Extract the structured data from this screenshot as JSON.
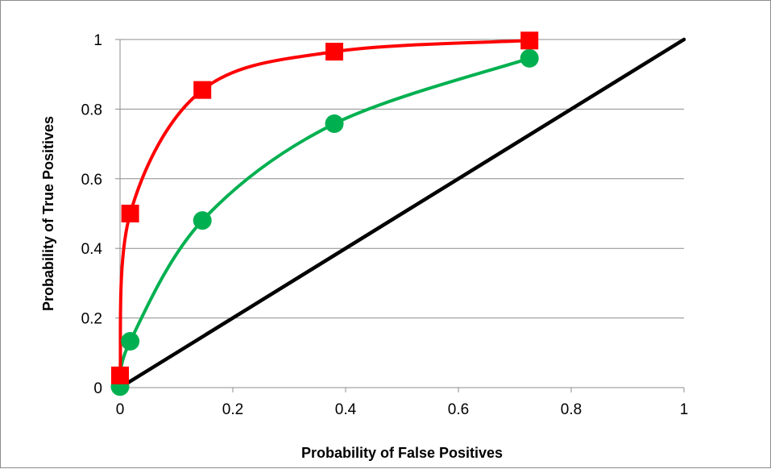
{
  "chart_data": {
    "type": "scatter",
    "title": "",
    "xlabel": "Probability of False Positives",
    "ylabel": "Probability of True Positives",
    "xlim": [
      0,
      1
    ],
    "ylim": [
      0,
      1
    ],
    "x_ticks": [
      0,
      0.2,
      0.4,
      0.6,
      0.8,
      1
    ],
    "y_ticks": [
      0,
      0.2,
      0.4,
      0.6,
      0.8,
      1
    ],
    "x_tick_labels": [
      "0",
      "0.2",
      "0.4",
      "0.6",
      "0.8",
      "1"
    ],
    "y_tick_labels": [
      "0",
      "0.2",
      "0.4",
      "0.6",
      "0.8",
      "1"
    ],
    "grid": "horizontal",
    "legend": "none",
    "series": [
      {
        "marker": "square",
        "color": "#ff0000",
        "smooth": true,
        "x": [
          0.0,
          0.018,
          0.146,
          0.38,
          0.726
        ],
        "y": [
          0.035,
          0.5,
          0.855,
          0.965,
          0.997
        ]
      },
      {
        "marker": "circle",
        "color": "#00b050",
        "smooth": true,
        "x": [
          0.0,
          0.018,
          0.146,
          0.38,
          0.726
        ],
        "y": [
          0.003,
          0.133,
          0.48,
          0.758,
          0.946
        ]
      },
      {
        "marker": "none",
        "color": "#000000",
        "smooth": false,
        "x": [
          0,
          1
        ],
        "y": [
          0,
          1
        ]
      }
    ]
  }
}
